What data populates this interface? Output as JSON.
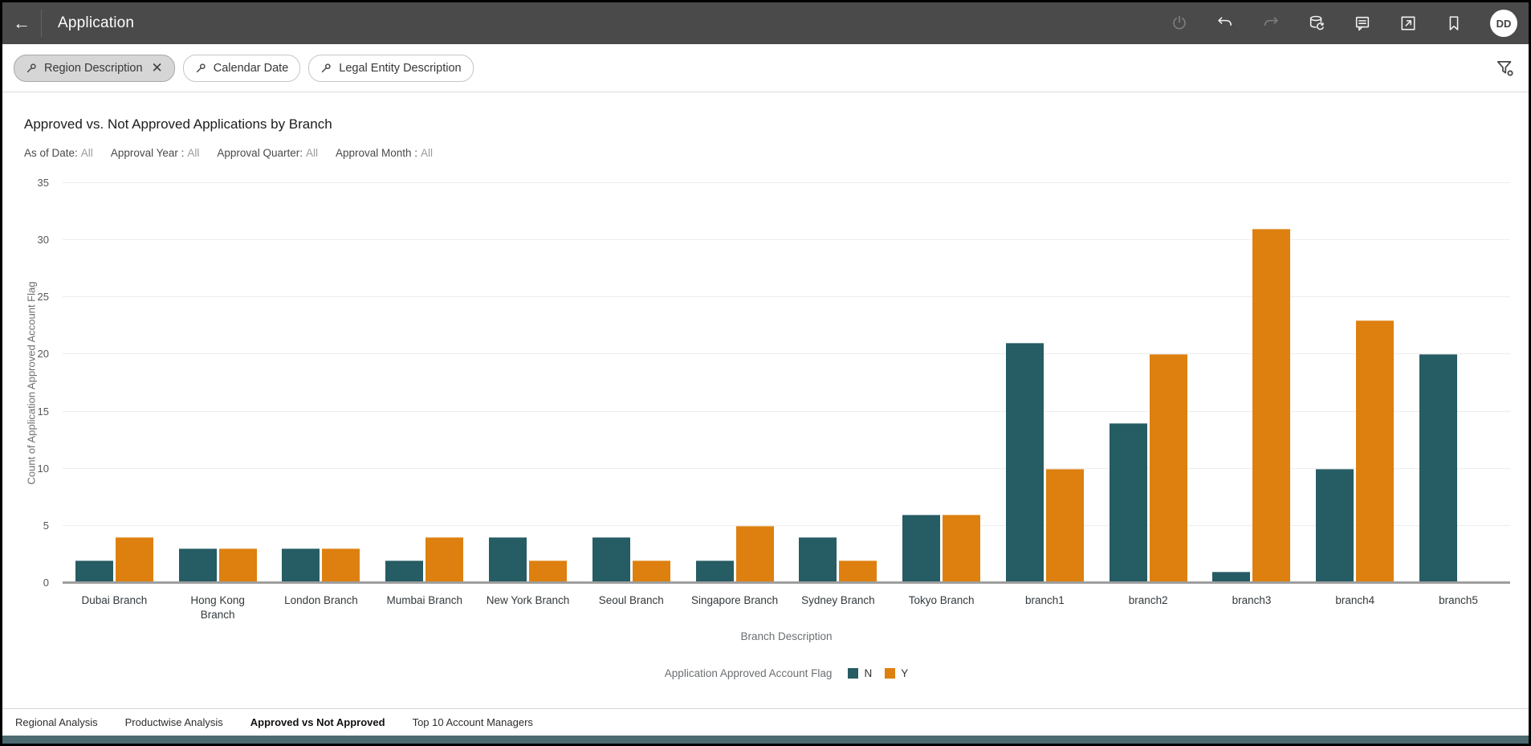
{
  "header": {
    "title": "Application",
    "back_icon": "arrow-left",
    "actions": [
      {
        "name": "power-icon",
        "enabled": false
      },
      {
        "name": "undo-icon",
        "enabled": true
      },
      {
        "name": "redo-icon",
        "enabled": false
      },
      {
        "name": "refresh-data-icon",
        "enabled": true
      },
      {
        "name": "comments-icon",
        "enabled": true
      },
      {
        "name": "export-icon",
        "enabled": true
      },
      {
        "name": "bookmark-icon",
        "enabled": true
      }
    ],
    "avatar_initials": "DD"
  },
  "filter_bar": {
    "pills": [
      {
        "label": "Region Description",
        "pin_icon": "pin-icon",
        "selected": true,
        "closable": true,
        "close_icon": "close-icon"
      },
      {
        "label": "Calendar Date",
        "pin_icon": "pin-icon",
        "selected": false,
        "closable": false
      },
      {
        "label": "Legal Entity Description",
        "pin_icon": "pin-icon",
        "selected": false,
        "closable": false
      }
    ],
    "filter_settings_icon": "funnel-gear-icon"
  },
  "chart_data": {
    "type": "bar",
    "title": "Approved vs. Not Approved Applications by Branch",
    "prompt_filters": [
      {
        "label": "As of Date:",
        "value": "All"
      },
      {
        "label": "Approval Year :",
        "value": "All"
      },
      {
        "label": "Approval Quarter:",
        "value": "All"
      },
      {
        "label": "Approval Month :",
        "value": "All"
      }
    ],
    "categories": [
      "Dubai Branch",
      "Hong Kong\nBranch",
      "London Branch",
      "Mumbai Branch",
      "New York Branch",
      "Seoul Branch",
      "Singapore Branch",
      "Sydney Branch",
      "Tokyo Branch",
      "branch1",
      "branch2",
      "branch3",
      "branch4",
      "branch5"
    ],
    "series": [
      {
        "name": "N",
        "color": "#265c64",
        "values": [
          2,
          3,
          3,
          2,
          4,
          4,
          2,
          4,
          6,
          21,
          14,
          1,
          10,
          20
        ]
      },
      {
        "name": "Y",
        "color": "#dd800f",
        "values": [
          4,
          3,
          3,
          4,
          2,
          2,
          5,
          2,
          6,
          10,
          20,
          31,
          23,
          0
        ]
      }
    ],
    "xlabel": "Branch Description",
    "ylabel": "Count of Application Approved Account Flag",
    "ylim": [
      0,
      35
    ],
    "ytick_step": 5,
    "grid": true,
    "legend_title": "Application Approved Account Flag",
    "legend_position": "bottom"
  },
  "tabs": [
    {
      "label": "Regional Analysis",
      "active": false
    },
    {
      "label": "Productwise Analysis",
      "active": false
    },
    {
      "label": "Approved vs Not Approved",
      "active": true
    },
    {
      "label": "Top 10 Account Managers",
      "active": false
    }
  ],
  "colors": {
    "header_bg": "#4a4a4a",
    "series_n": "#265c64",
    "series_y": "#dd800f",
    "bottom_strip": "#4d6a71"
  }
}
